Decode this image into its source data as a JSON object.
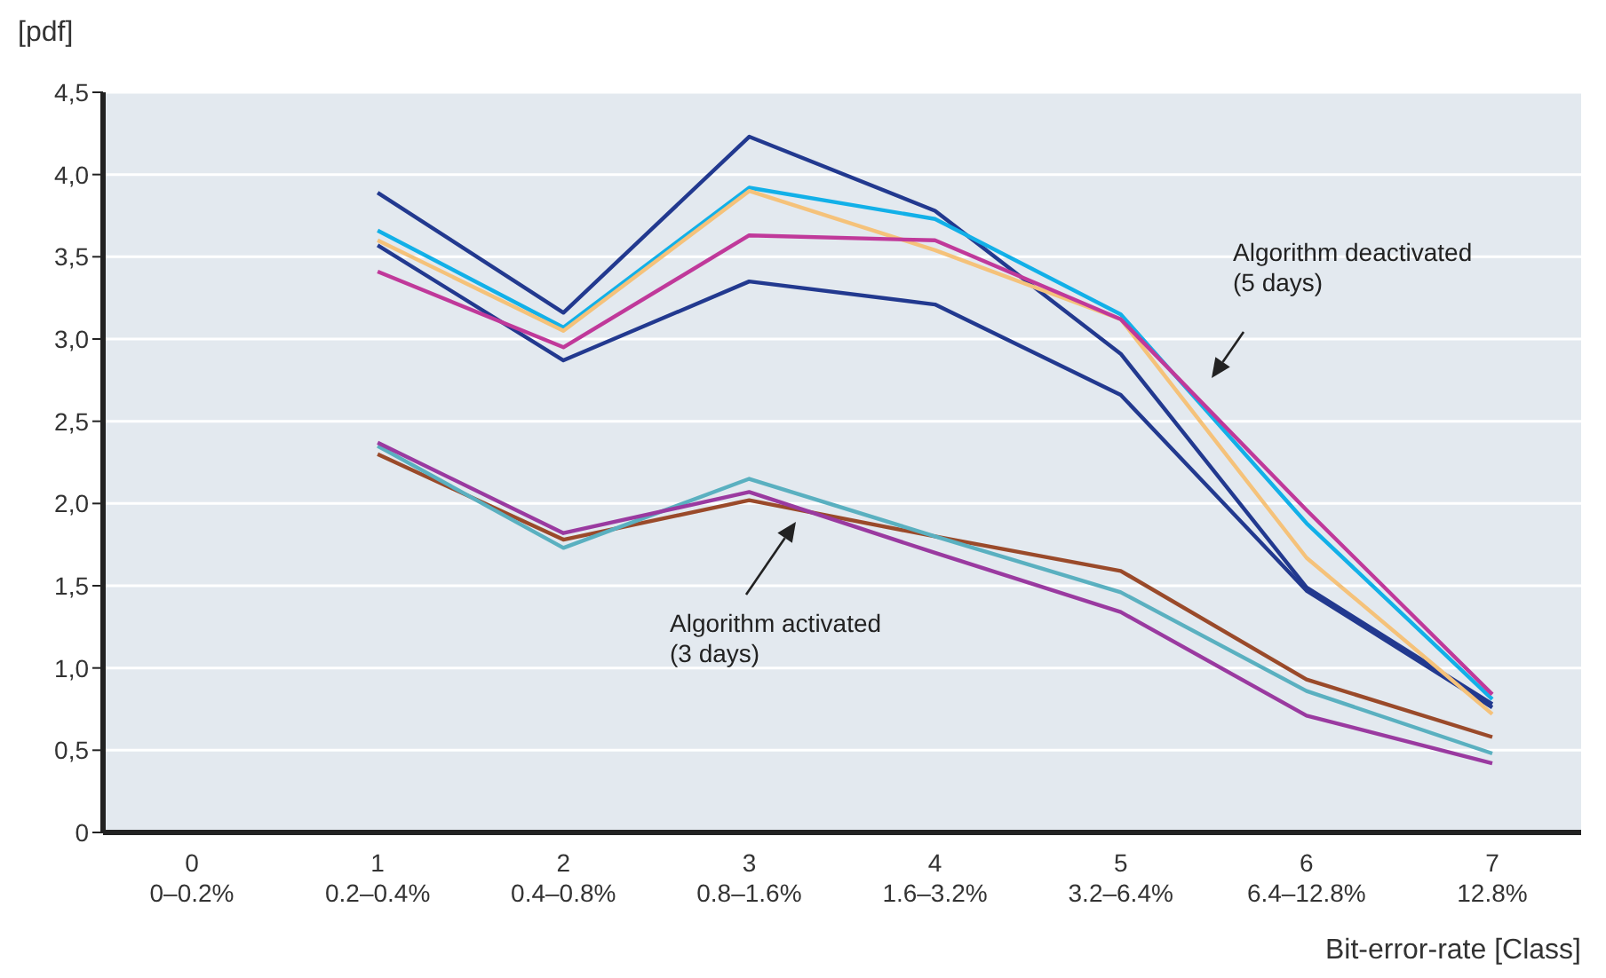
{
  "chart_data": {
    "type": "line",
    "ylabel": "[pdf]",
    "xlabel": "Bit-error-rate [Class]",
    "categories": [
      "0\n0–0.2%",
      "1\n0.2–0.4%",
      "2\n0.4–0.8%",
      "3\n0.8–1.6%",
      "4\n1.6–3.2%",
      "5\n3.2–6.4%",
      "6\n6.4–12.8%",
      "7\n12.8%"
    ],
    "series": [
      {
        "color": "#22398f",
        "values": [
          null,
          3.89,
          3.16,
          4.23,
          3.78,
          2.91,
          1.49,
          0.78
        ]
      },
      {
        "color": "#22398f",
        "values": [
          null,
          3.57,
          2.87,
          3.35,
          3.21,
          2.66,
          1.47,
          0.76
        ]
      },
      {
        "color": "#12b0e8",
        "values": [
          null,
          3.66,
          3.07,
          3.92,
          3.73,
          3.15,
          1.88,
          0.81
        ]
      },
      {
        "color": "#f5c27a",
        "values": [
          null,
          3.6,
          3.05,
          3.9,
          3.54,
          3.12,
          1.67,
          0.72
        ]
      },
      {
        "color": "#c0399a",
        "values": [
          null,
          3.41,
          2.95,
          3.63,
          3.6,
          3.12,
          1.96,
          0.84
        ]
      },
      {
        "color": "#9a4a2a",
        "values": [
          null,
          2.3,
          1.78,
          2.02,
          1.8,
          1.59,
          0.93,
          0.58
        ]
      },
      {
        "color": "#5ab0c0",
        "values": [
          null,
          2.35,
          1.73,
          2.15,
          1.8,
          1.46,
          0.86,
          0.48
        ]
      },
      {
        "color": "#9a3aa0",
        "values": [
          null,
          2.37,
          1.82,
          2.07,
          1.7,
          1.34,
          0.71,
          0.42
        ]
      }
    ],
    "ylim": [
      0,
      4.5
    ],
    "yticks": [
      0,
      {
        "value": 0.5,
        "label": "0,5"
      },
      {
        "value": 1,
        "label": "1,0"
      },
      {
        "value": 1.5,
        "label": "1,5"
      },
      {
        "value": 2,
        "label": "2,0"
      },
      {
        "value": 2.5,
        "label": "2,5"
      },
      {
        "value": 3,
        "label": "3,0"
      },
      {
        "value": 3.5,
        "label": "3,5"
      },
      {
        "value": 4,
        "label": "4,0"
      },
      {
        "value": 4.5,
        "label": "4,5"
      }
    ],
    "grid": "y",
    "marker": "none",
    "line_style": "solid",
    "annotations": [
      "Algorithm deactivated\n(5 days)",
      "Algorithm activated\n(3 days)"
    ]
  }
}
